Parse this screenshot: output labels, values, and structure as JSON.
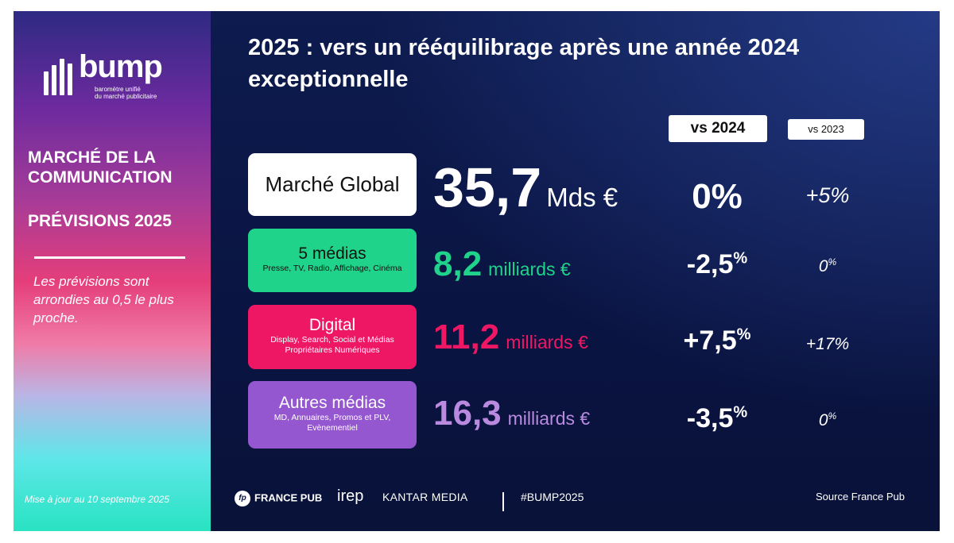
{
  "brand": {
    "logo_word": "bump",
    "logo_tagline_1": "baromètre unifié",
    "logo_tagline_2": "du marché publicitaire"
  },
  "sidebar": {
    "title_line1": "MARCHÉ DE LA",
    "title_line2": "COMMUNICATION",
    "subtitle": "PRÉVISIONS 2025",
    "note": "Les prévisions sont arrondies au 0,5 le plus proche.",
    "updated": "Mise à jour au 10 septembre 2025"
  },
  "main": {
    "title": "2025 : vers un rééquilibrage après une année 2024 exceptionnelle",
    "headers": {
      "vs2024": "vs 2024",
      "vs2023": "vs 2023"
    },
    "rows": [
      {
        "label": "Marché Global",
        "sublabel": "",
        "value": "35,7",
        "unit": "Mds €",
        "vs2024": "0%",
        "vs2024_suffix": "",
        "vs2023": "+5%",
        "vs2023_suffix": "",
        "color": "#ffffff"
      },
      {
        "label": "5 médias",
        "sublabel": "Presse, TV, Radio, Affichage, Cinéma",
        "value": "8,2",
        "unit": "milliards €",
        "vs2024": "-2,5",
        "vs2024_suffix": "%",
        "vs2023": "0",
        "vs2023_suffix": "%",
        "color": "#1fd38a"
      },
      {
        "label": "Digital",
        "sublabel": "Display, Search, Social et Médias Propriétaires Numériques",
        "value": "11,2",
        "unit": "milliards €",
        "vs2024": "+7,5",
        "vs2024_suffix": "%",
        "vs2023": "+17%",
        "vs2023_suffix": "",
        "color": "#ee1763"
      },
      {
        "label": "Autres médias",
        "sublabel": "MD, Annuaires, Promos et PLV, Evènementiel",
        "value": "16,3",
        "unit": "milliards €",
        "vs2024": "-3,5",
        "vs2024_suffix": "%",
        "vs2023": "0",
        "vs2023_suffix": "%",
        "color": "#9457cf"
      }
    ]
  },
  "footer": {
    "fp_icon": "fp",
    "france_pub": "FRANCE PUB",
    "irep": "irep",
    "kantar": "KANTAR MEDIA",
    "hashtag": "#BUMP2025",
    "source": "Source France Pub"
  }
}
